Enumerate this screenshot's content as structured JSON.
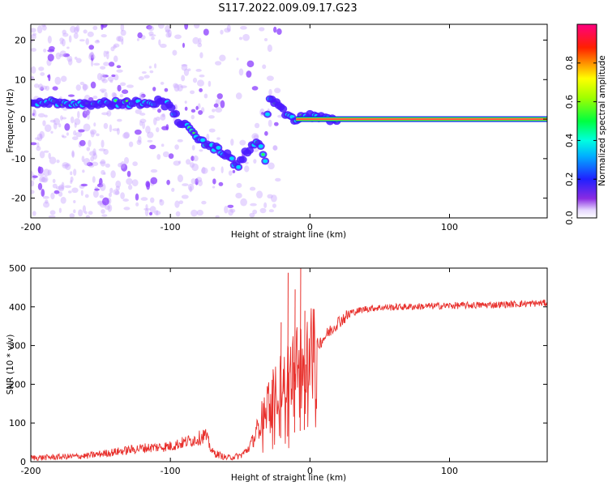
{
  "title": "S117.2022.009.09.17.G23",
  "colors": {
    "snr_line": "#e8302c",
    "zero_line_core": "#ff2060",
    "axis": "#000000",
    "background": "#ffffff"
  },
  "chart_data": [
    {
      "type": "heatmap",
      "xlabel": "Height of straight line (km)",
      "ylabel": "Frequency (Hz)",
      "xlim": [
        -200,
        170
      ],
      "ylim": [
        -25,
        24
      ],
      "x_ticks": [
        -200,
        -100,
        0,
        100
      ],
      "y_ticks": [
        -20,
        -10,
        0,
        10,
        20
      ],
      "colormap": "rainbow (violet → blue → cyan → green → yellow → red → magenta)",
      "colorbar": {
        "label": "Normalized spectral amplitude",
        "range": [
          0,
          1
        ],
        "ticks": [
          "0.0",
          "0.2",
          "0.4",
          "0.6",
          "0.8"
        ]
      },
      "ridge": {
        "x": [
          -200,
          -170,
          -150,
          -130,
          -110,
          -100,
          -95,
          -90,
          -80,
          -70,
          -60,
          -52,
          -45,
          -40,
          -35,
          -32,
          -30,
          -25,
          -20,
          -15,
          -10,
          -5,
          0,
          10,
          20,
          170
        ],
        "y": [
          4.5,
          4,
          4,
          4,
          4.5,
          3.5,
          0,
          -1.5,
          -5,
          -7,
          -9,
          -12,
          -8,
          -6,
          -7,
          -11,
          5,
          4,
          2,
          1,
          -0.5,
          0.5,
          1,
          0,
          0,
          0
        ]
      }
    },
    {
      "type": "line",
      "xlabel": "Height of straight line (km)",
      "ylabel": "SNR (10 * v/v)",
      "xlim": [
        -200,
        170
      ],
      "ylim": [
        0,
        500
      ],
      "x_ticks": [
        -200,
        -100,
        0,
        100
      ],
      "y_ticks": [
        0,
        100,
        200,
        300,
        400,
        500
      ],
      "series": [
        {
          "envelope_x": [
            -200,
            -180,
            -160,
            -140,
            -120,
            -100,
            -90,
            -80,
            -75,
            -70,
            -60,
            -50,
            -45,
            -40,
            -35,
            -30,
            -25,
            -20,
            -15,
            -10,
            -5,
            0,
            5,
            10,
            20,
            30,
            40,
            50,
            70,
            100,
            130,
            170
          ],
          "envelope_y": [
            10,
            12,
            15,
            25,
            35,
            40,
            50,
            60,
            70,
            25,
            10,
            15,
            30,
            60,
            110,
            160,
            180,
            210,
            220,
            260,
            270,
            290,
            300,
            320,
            360,
            385,
            395,
            398,
            400,
            403,
            405,
            410
          ],
          "spikes": [
            {
              "x": -16,
              "y": 488
            },
            {
              "x": -11,
              "y": 445
            },
            {
              "x": -7,
              "y": 500
            },
            {
              "x": -4,
              "y": 390
            },
            {
              "x": -21,
              "y": 360
            }
          ]
        }
      ]
    }
  ]
}
